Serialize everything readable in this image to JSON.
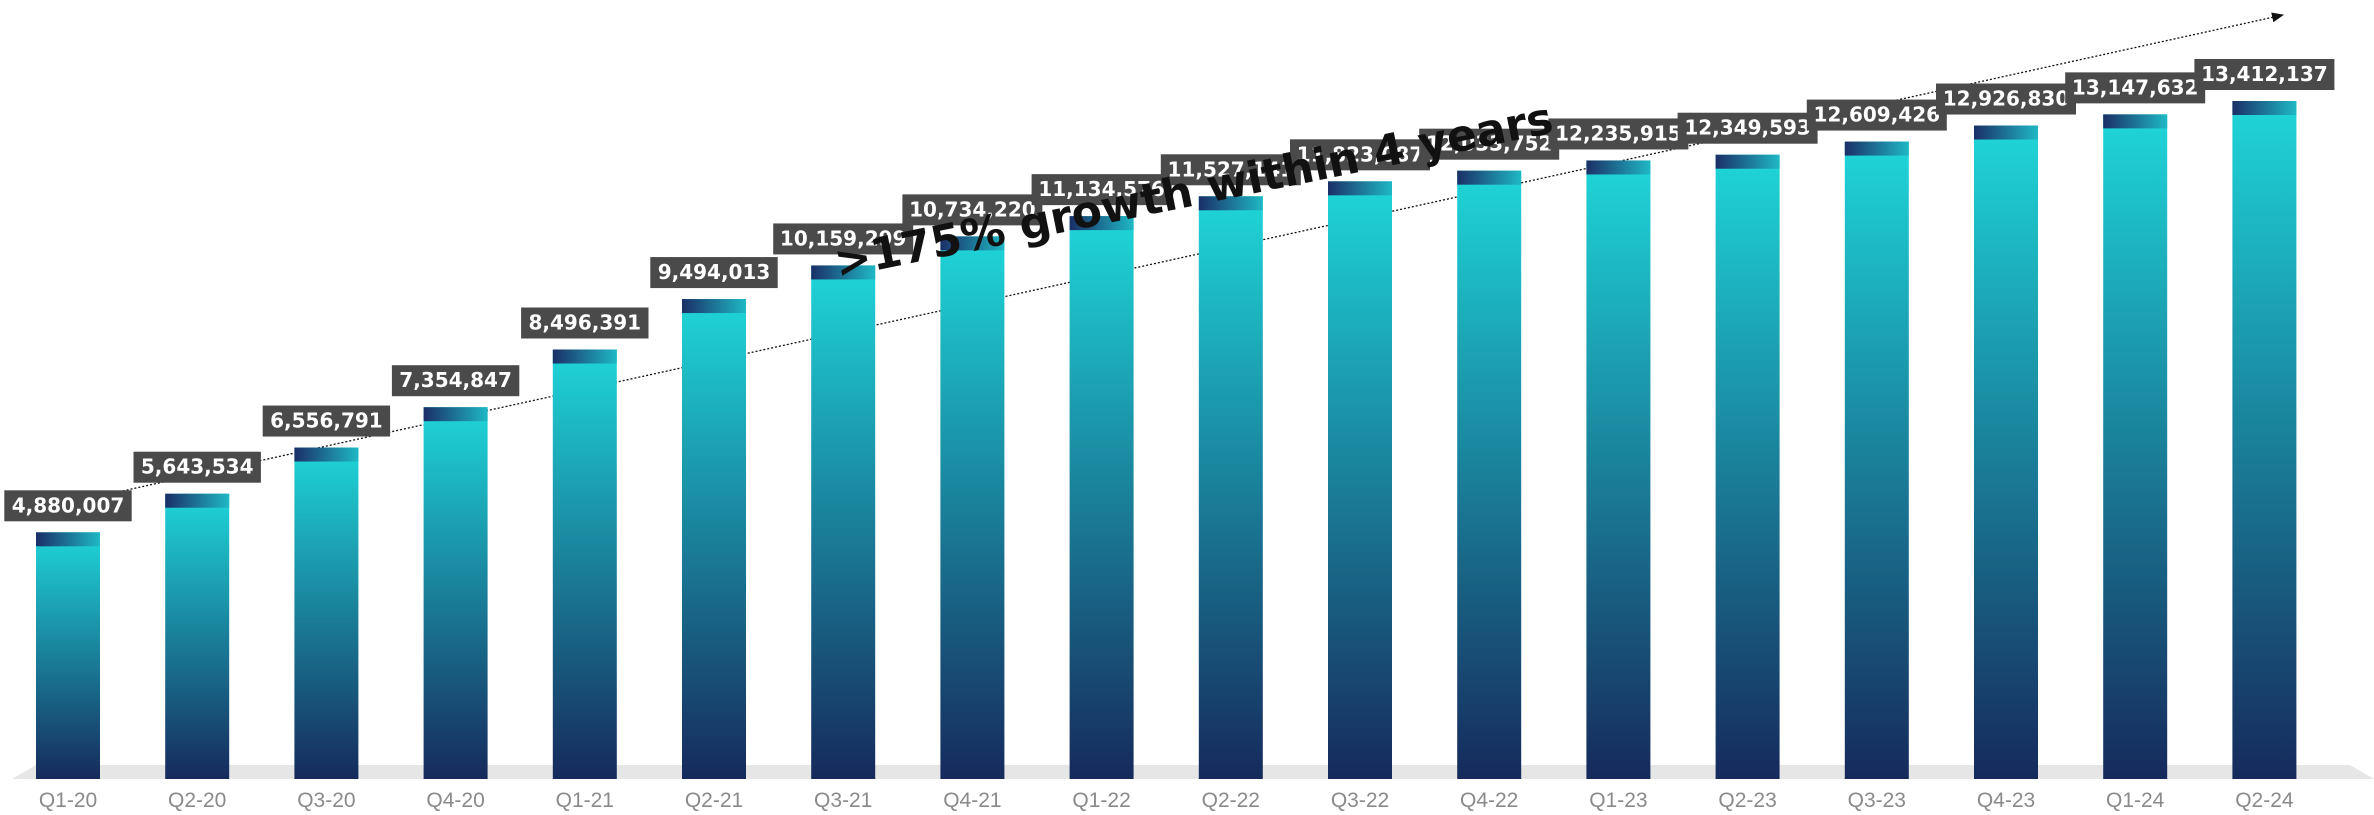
{
  "chart_data": {
    "type": "bar",
    "title": "",
    "xlabel": "",
    "ylabel": "",
    "ylim": [
      0,
      14000000
    ],
    "grid": false,
    "legend": "none",
    "categories": [
      "Q1-20",
      "Q2-20",
      "Q3-20",
      "Q4-20",
      "Q1-21",
      "Q2-21",
      "Q3-21",
      "Q4-21",
      "Q1-22",
      "Q2-22",
      "Q3-22",
      "Q4-22",
      "Q1-23",
      "Q2-23",
      "Q3-23",
      "Q4-23",
      "Q1-24",
      "Q2-24"
    ],
    "values": [
      4880007,
      5643534,
      6556791,
      7354847,
      8496391,
      9494013,
      10159299,
      10734220,
      11134576,
      11527141,
      11823087,
      12033752,
      12235915,
      12349593,
      12609426,
      12926830,
      13147632,
      13412137
    ],
    "value_labels": [
      "4,880,007",
      "5,643,534",
      "6,556,791",
      "7,354,847",
      "8,496,391",
      "9,494,013",
      "10,159,299",
      "10,734,220",
      "11,134,576",
      "11,527,141",
      "11,823,087",
      "12,033,752",
      "12,235,915",
      "12,349,593",
      "12,609,426",
      "12,926,830",
      "13,147,632",
      "13,412,137"
    ],
    "annotation": ">175% growth within 4 years",
    "colors": {
      "bar_top": "#1ed6d8",
      "bar_bottom": "#162a5c",
      "cap_dark": "#1b2f66",
      "cap_light": "#1fb8c4",
      "label_bg": "#4a4a4a",
      "label_text": "#ffffff",
      "tick_text": "#8a8a8a",
      "floor": "#e6e6e6",
      "arrow": "#111111"
    }
  }
}
